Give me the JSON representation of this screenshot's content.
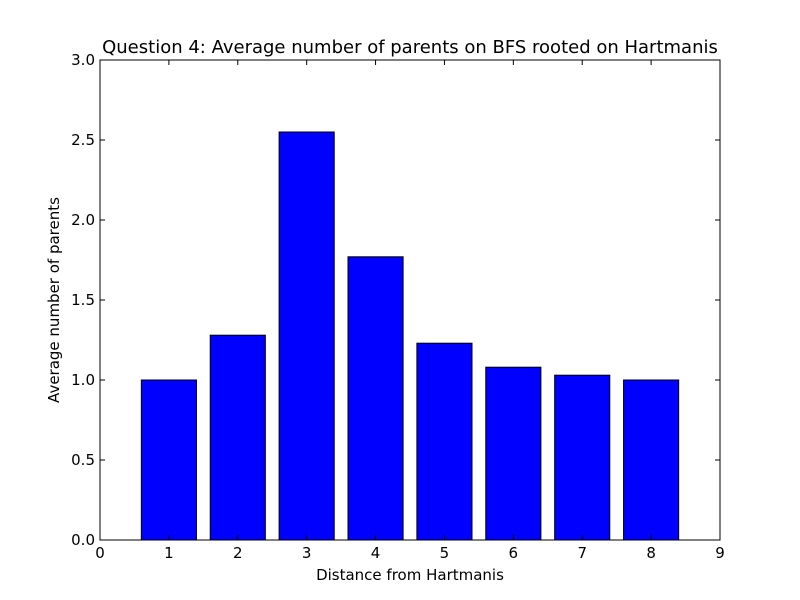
{
  "chart_data": {
    "type": "bar",
    "title": "Question 4:  Average number of parents on BFS rooted on Hartmanis",
    "xlabel": "Distance from Hartmanis",
    "ylabel": "Average number of parents",
    "categories": [
      1,
      2,
      3,
      4,
      5,
      6,
      7,
      8
    ],
    "values": [
      1.0,
      1.28,
      2.55,
      1.77,
      1.23,
      1.08,
      1.03,
      1.0
    ],
    "xlim": [
      0,
      9
    ],
    "ylim": [
      0,
      3.0
    ],
    "xticks": [
      "0",
      "1",
      "2",
      "3",
      "4",
      "5",
      "6",
      "7",
      "8",
      "9"
    ],
    "yticks": [
      "0.0",
      "0.5",
      "1.0",
      "1.5",
      "2.0",
      "2.5",
      "3.0"
    ],
    "bar_color": "#0000ff",
    "edge_color": "#000000",
    "grid": false,
    "legend": "none"
  }
}
